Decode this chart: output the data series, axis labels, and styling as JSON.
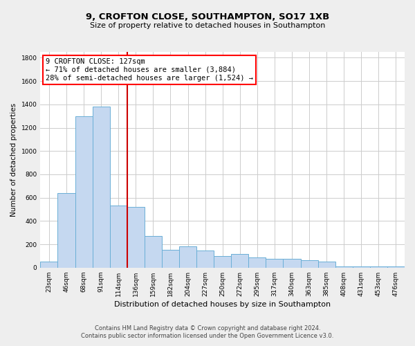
{
  "title_line1": "9, CROFTON CLOSE, SOUTHAMPTON, SO17 1XB",
  "title_line2": "Size of property relative to detached houses in Southampton",
  "xlabel": "Distribution of detached houses by size in Southampton",
  "ylabel": "Number of detached properties",
  "categories": [
    "23sqm",
    "46sqm",
    "68sqm",
    "91sqm",
    "114sqm",
    "136sqm",
    "159sqm",
    "182sqm",
    "204sqm",
    "227sqm",
    "250sqm",
    "272sqm",
    "295sqm",
    "317sqm",
    "340sqm",
    "363sqm",
    "385sqm",
    "408sqm",
    "431sqm",
    "453sqm",
    "476sqm"
  ],
  "values": [
    55,
    640,
    1300,
    1380,
    530,
    520,
    270,
    155,
    185,
    150,
    100,
    115,
    90,
    75,
    75,
    65,
    55,
    10,
    10,
    10,
    10
  ],
  "bar_color": "#c5d8f0",
  "bar_edge_color": "#6aafd6",
  "bar_edge_width": 0.7,
  "vline_color": "#cc0000",
  "annotation_lines": [
    "9 CROFTON CLOSE: 127sqm",
    "← 71% of detached houses are smaller (3,884)",
    "28% of semi-detached houses are larger (1,524) →"
  ],
  "ylim": [
    0,
    1850
  ],
  "yticks": [
    0,
    200,
    400,
    600,
    800,
    1000,
    1200,
    1400,
    1600,
    1800
  ],
  "footnote1": "Contains HM Land Registry data © Crown copyright and database right 2024.",
  "footnote2": "Contains public sector information licensed under the Open Government Licence v3.0.",
  "bg_color": "#eeeeee",
  "plot_bg_color": "#ffffff",
  "grid_color": "#cccccc",
  "title1_fontsize": 9.5,
  "title2_fontsize": 8.0,
  "ylabel_fontsize": 7.5,
  "xlabel_fontsize": 8.0,
  "tick_fontsize": 6.5,
  "annot_fontsize": 7.5,
  "footnote_fontsize": 6.0
}
